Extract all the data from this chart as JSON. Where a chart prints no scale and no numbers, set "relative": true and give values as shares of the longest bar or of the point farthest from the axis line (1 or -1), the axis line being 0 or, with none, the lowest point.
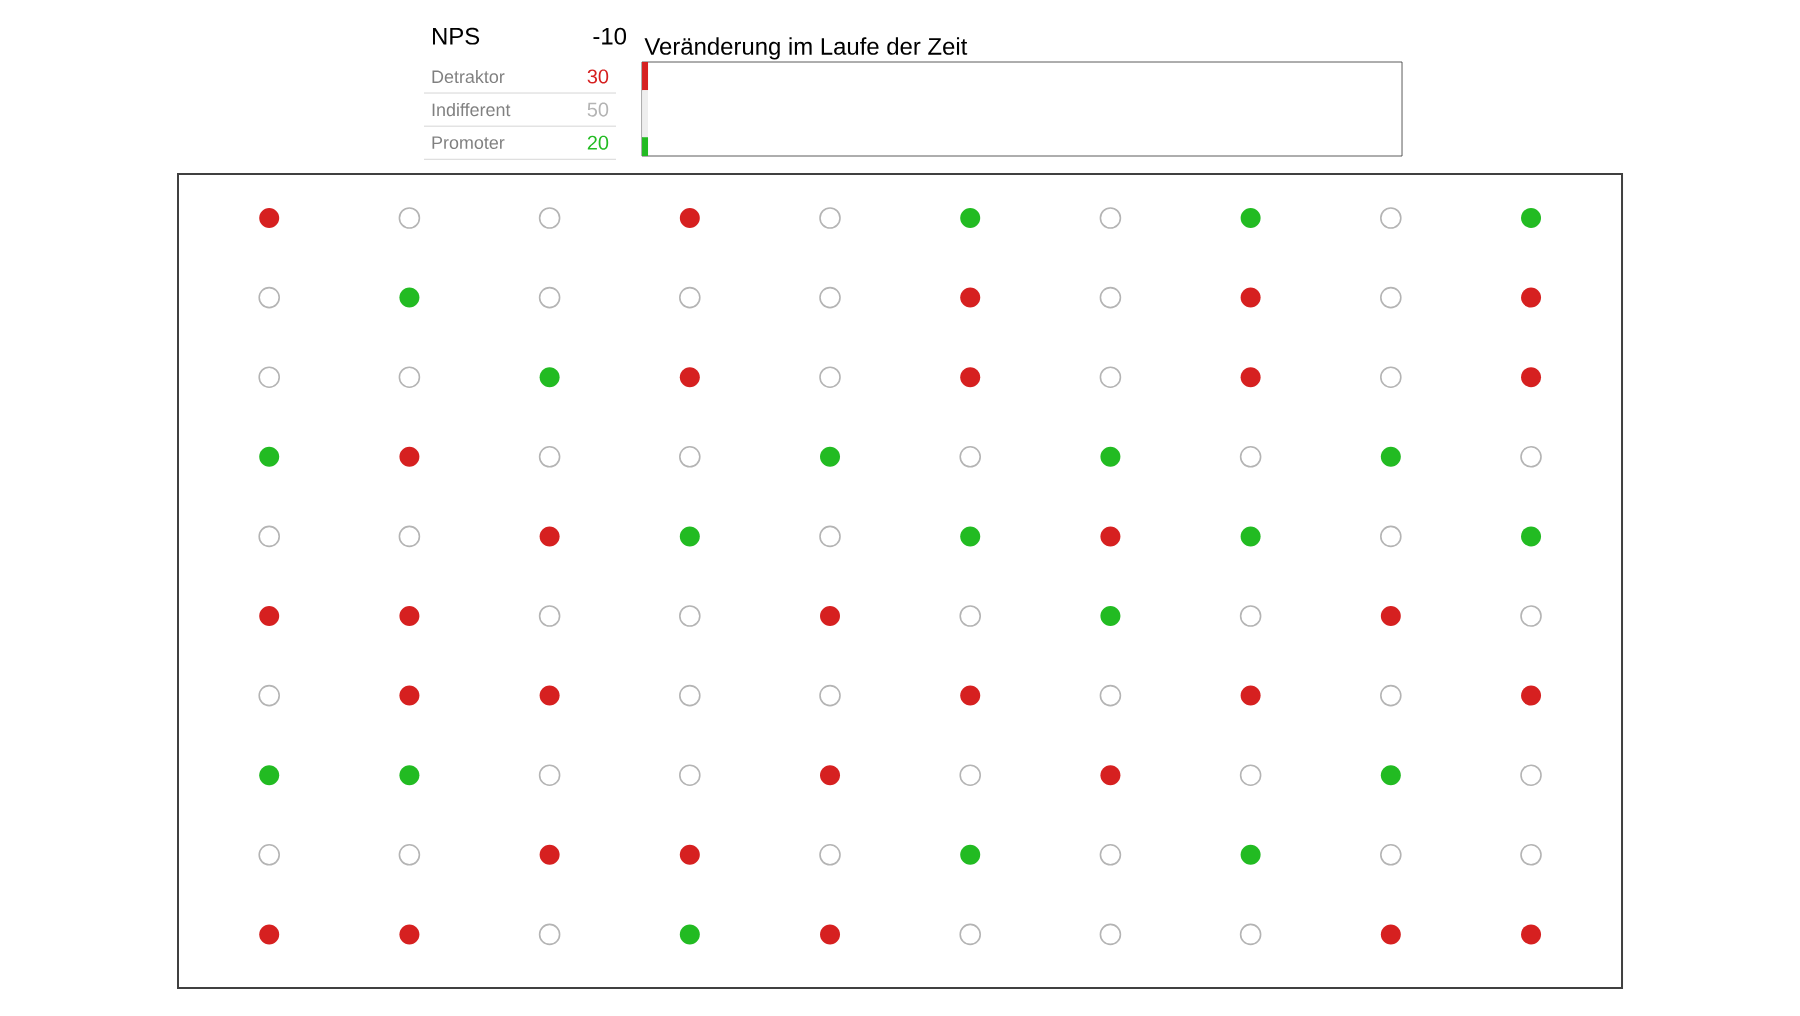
{
  "chart_data": [
    {
      "type": "other",
      "title": "NPS",
      "annotations": [
        "-10"
      ],
      "categories": [
        "Detraktor",
        "Indifferent",
        "Promoter"
      ],
      "values": [
        30,
        50,
        20
      ],
      "data_labels": true,
      "colors": [
        "#d62020",
        "#b4b4b4",
        "#22bb22"
      ]
    },
    {
      "type": "bar",
      "title": "Veränderung im Laufe der Zeit",
      "stacked": true,
      "relative": true,
      "categories": [
        null
      ],
      "tick_labels": false,
      "series": [
        {
          "color": "#22bb22",
          "values": [
            0.2
          ]
        },
        {
          "color": "#eeeeee",
          "values": [
            0.5
          ]
        },
        {
          "color": "#d62020",
          "values": [
            0.3
          ]
        }
      ]
    }
  ]
}
